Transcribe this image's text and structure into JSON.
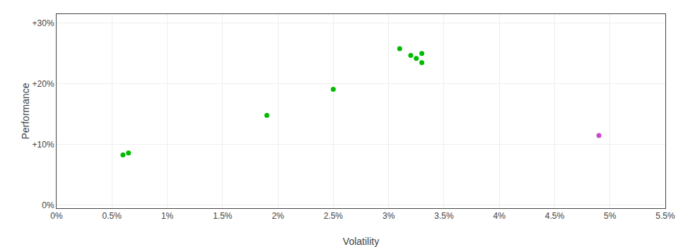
{
  "chart_data": {
    "type": "scatter",
    "xlabel": "Volatility",
    "ylabel": "Performance",
    "series": [
      {
        "color": "#00bb00",
        "x": [
          0.006,
          0.0065,
          0.019,
          0.025,
          0.031,
          0.032,
          0.0325,
          0.033,
          0.033
        ],
        "values": [
          0.083,
          0.086,
          0.148,
          0.191,
          0.258,
          0.247,
          0.242,
          0.25,
          0.235
        ]
      },
      {
        "color": "#cc44cc",
        "x": [
          0.049
        ],
        "values": [
          0.115
        ]
      }
    ],
    "xlim": [
      0.0,
      0.055
    ],
    "xticks": [
      {
        "value": 0.0,
        "label": "0%"
      },
      {
        "value": 0.005,
        "label": "0.5%"
      },
      {
        "value": 0.01,
        "label": "1%"
      },
      {
        "value": 0.015,
        "label": "1.5%"
      },
      {
        "value": 0.02,
        "label": "2%"
      },
      {
        "value": 0.025,
        "label": "2.5%"
      },
      {
        "value": 0.03,
        "label": "3%"
      },
      {
        "value": 0.035,
        "label": "3.5%"
      },
      {
        "value": 0.04,
        "label": "4%"
      },
      {
        "value": 0.045,
        "label": "4.5%"
      },
      {
        "value": 0.05,
        "label": "5%"
      },
      {
        "value": 0.055,
        "label": "5.5%"
      }
    ],
    "ylim": [
      -0.005,
      0.315
    ],
    "yticks": [
      {
        "value": 0.0,
        "label": "0%"
      },
      {
        "value": 0.1,
        "label": "+10%"
      },
      {
        "value": 0.2,
        "label": "+20%"
      },
      {
        "value": 0.3,
        "label": "+30%"
      }
    ],
    "grid": true
  }
}
